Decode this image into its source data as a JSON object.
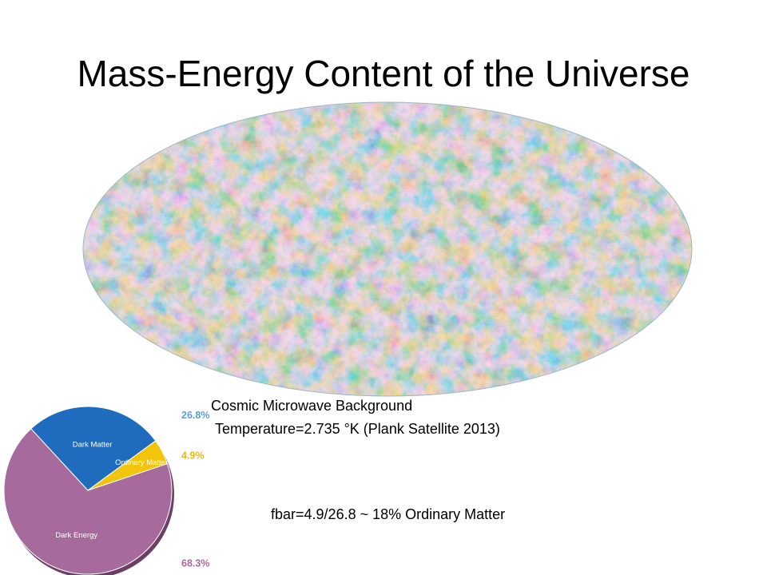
{
  "slide": {
    "title": "Mass-Energy Content of the Universe",
    "image_caption": "Cosmic Microwave Background",
    "image_subcaption": "Temperature=2.735 °K (Plank Satellite 2013)",
    "ratio_note": "fbar=4.9/26.8 ~ 18% Ordinary Matter"
  },
  "cmb_map": {
    "icon": "cmb-sky-map",
    "colors": {
      "cold": "#1c73c9",
      "mid": "#8fb7c9",
      "warm": "#e8874a",
      "hot": "#c94a1f"
    }
  },
  "chart_data": {
    "type": "pie",
    "categories": [
      "Dark Energy",
      "Dark Matter",
      "Ordinary Matter"
    ],
    "values": [
      68.3,
      26.8,
      4.9
    ],
    "labels": [
      "68.3%",
      "26.8%",
      "4.9%"
    ],
    "colors": [
      "#a66a9c",
      "#1f6cbf",
      "#f2c40c"
    ],
    "label_colors": [
      "#a66a9c",
      "#5b9fd6",
      "#e8b90a"
    ],
    "title": "",
    "legend": "none"
  }
}
